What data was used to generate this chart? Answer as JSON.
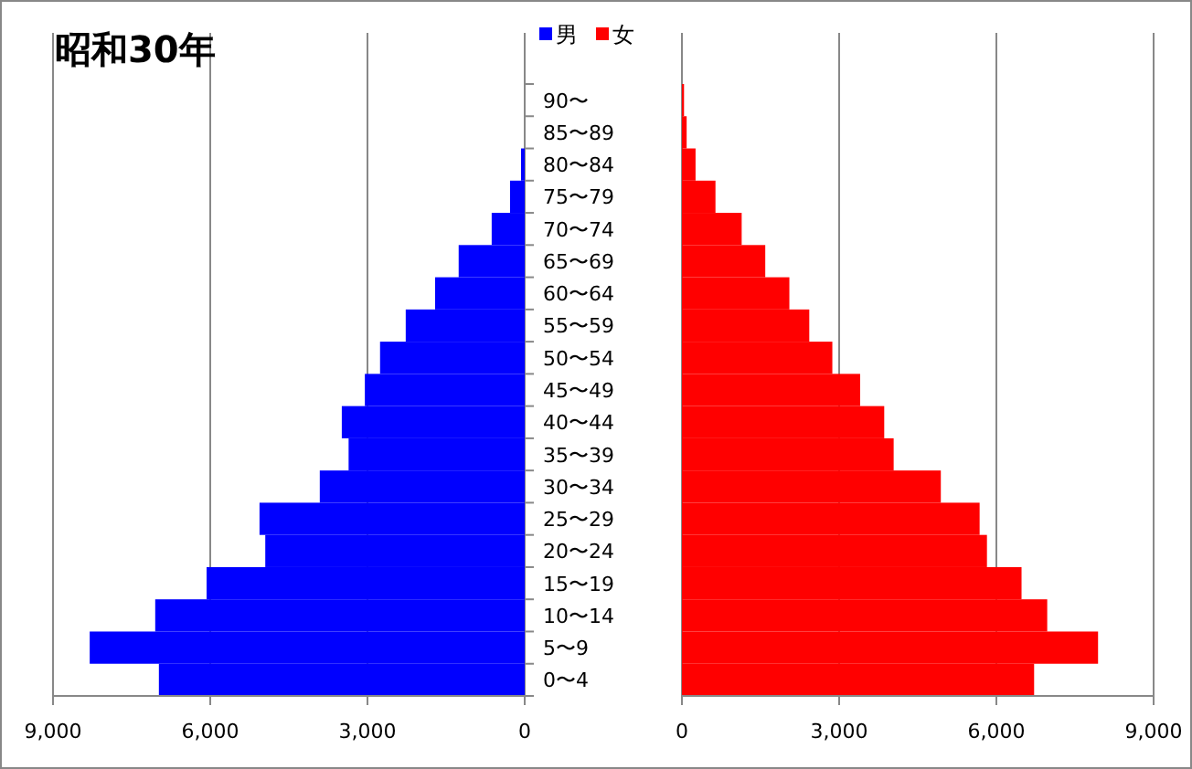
{
  "chart_data": [
    {
      "type": "bar",
      "orientation": "horizontal",
      "title": "昭和30年",
      "legend": "top",
      "grid": "x",
      "categories": [
        "90〜",
        "85〜89",
        "80〜84",
        "75〜79",
        "70〜74",
        "65〜69",
        "60〜64",
        "55〜59",
        "50〜54",
        "45〜49",
        "40〜44",
        "35〜39",
        "30〜34",
        "25〜29",
        "20〜24",
        "15〜19",
        "10〜14",
        "5〜9",
        "0〜4"
      ],
      "xlim": [
        9000,
        0
      ],
      "xticks": [
        {
          "value": 9000,
          "label": "9,000"
        },
        {
          "value": 6000,
          "label": "6,000"
        },
        {
          "value": 3000,
          "label": "3,000"
        },
        0
      ],
      "series": [
        {
          "name": "男",
          "color": "#0000ff",
          "values": [
            null,
            null,
            70,
            280,
            630,
            1260,
            1710,
            2270,
            2760,
            3050,
            3490,
            3360,
            3910,
            5060,
            4950,
            6070,
            7050,
            8300,
            6980
          ]
        }
      ]
    },
    {
      "type": "bar",
      "orientation": "horizontal",
      "legend": "top",
      "grid": "x",
      "tick_labels": "x",
      "categories": [
        null,
        null,
        null,
        null,
        null,
        null,
        null,
        null,
        null,
        null,
        null,
        null,
        null,
        null,
        null,
        null,
        null,
        null,
        null
      ],
      "xlim": [
        0,
        9000
      ],
      "xticks": [
        0,
        {
          "value": 3000,
          "label": "3,000"
        },
        {
          "value": 6000,
          "label": "6,000"
        },
        {
          "value": 9000,
          "label": "9,000"
        }
      ],
      "series": [
        {
          "name": "女",
          "color": "#ff0000",
          "values": [
            40,
            90,
            260,
            640,
            1140,
            1590,
            2050,
            2430,
            2870,
            3400,
            3860,
            4040,
            4940,
            5680,
            5820,
            6480,
            6970,
            7940,
            6720
          ]
        }
      ]
    }
  ]
}
